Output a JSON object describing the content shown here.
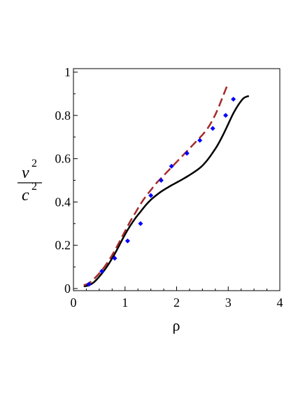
{
  "chart_data": {
    "type": "line",
    "xlabel": "ρ",
    "ylabel": {
      "numerator": "v",
      "numerator_exp": "2",
      "denominator": "c",
      "denominator_exp": "2"
    },
    "xlim": [
      0,
      4
    ],
    "ylim": [
      0,
      1
    ],
    "xticks": [
      "0",
      "1",
      "2",
      "3",
      "4"
    ],
    "yticks": [
      "0",
      "0.2",
      "0.4",
      "0.6",
      "0.8",
      "1"
    ],
    "grid": false,
    "legend": "none",
    "series": [
      {
        "style": "solid",
        "color": "#000000",
        "x": [
          0.2,
          0.3,
          0.4,
          0.5,
          0.6,
          0.7,
          0.8,
          0.9,
          1.0,
          1.1,
          1.2,
          1.3,
          1.4,
          1.5,
          1.6,
          1.7,
          1.8,
          1.9,
          2.0,
          2.1,
          2.2,
          2.3,
          2.4,
          2.5,
          2.6,
          2.7,
          2.8,
          2.9,
          3.0,
          3.1,
          3.2,
          3.3,
          3.4
        ],
        "y": [
          0.01,
          0.015,
          0.03,
          0.055,
          0.085,
          0.12,
          0.16,
          0.205,
          0.25,
          0.29,
          0.325,
          0.355,
          0.385,
          0.41,
          0.43,
          0.448,
          0.463,
          0.477,
          0.49,
          0.503,
          0.517,
          0.532,
          0.548,
          0.568,
          0.595,
          0.628,
          0.665,
          0.71,
          0.76,
          0.81,
          0.85,
          0.88,
          0.89
        ]
      },
      {
        "style": "dashed",
        "color": "#a52a2a",
        "x": [
          0.2,
          0.3,
          0.4,
          0.5,
          0.6,
          0.7,
          0.8,
          0.9,
          1.0,
          1.1,
          1.2,
          1.3,
          1.4,
          1.5,
          1.6,
          1.7,
          1.8,
          1.9,
          2.0,
          2.1,
          2.2,
          2.3,
          2.4,
          2.5,
          2.6,
          2.7,
          2.8,
          2.9,
          3.0
        ],
        "y": [
          0.015,
          0.025,
          0.045,
          0.07,
          0.1,
          0.135,
          0.175,
          0.22,
          0.265,
          0.31,
          0.35,
          0.39,
          0.425,
          0.455,
          0.485,
          0.51,
          0.535,
          0.56,
          0.585,
          0.61,
          0.635,
          0.66,
          0.685,
          0.71,
          0.74,
          0.78,
          0.83,
          0.89,
          0.95
        ]
      },
      {
        "style": "dotted",
        "color": "#0000ff",
        "marker": "diamond",
        "x": [
          0.3,
          0.55,
          0.8,
          1.05,
          1.3,
          1.5,
          1.7,
          1.9,
          2.2,
          2.45,
          2.7,
          2.95,
          3.1
        ],
        "y": [
          0.02,
          0.08,
          0.14,
          0.22,
          0.3,
          0.43,
          0.5,
          0.565,
          0.625,
          0.685,
          0.74,
          0.8,
          0.875
        ]
      }
    ]
  }
}
